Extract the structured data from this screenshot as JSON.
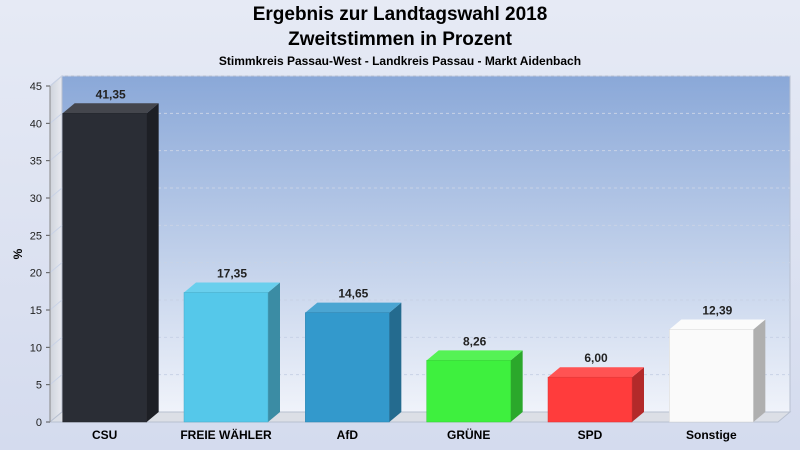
{
  "title_line1": "Ergebnis zur Landtagswahl 2018",
  "title_line2": "Zweitstimmen in Prozent",
  "subtitle": "Stimmkreis Passau-West - Landkreis Passau - Markt Aidenbach",
  "chart_data": {
    "type": "bar",
    "title": "Ergebnis zur Landtagswahl 2018 Zweitstimmen in Prozent",
    "subtitle": "Stimmkreis Passau-West - Landkreis Passau - Markt Aidenbach",
    "xlabel": "",
    "ylabel": "%",
    "ylim": [
      0,
      45
    ],
    "yticks": [
      0,
      5,
      10,
      15,
      20,
      25,
      30,
      35,
      40,
      45
    ],
    "grid": true,
    "categories": [
      "CSU",
      "FREIE WÄHLER",
      "AfD",
      "GRÜNE",
      "SPD",
      "Sonstige"
    ],
    "values": [
      41.35,
      17.35,
      14.65,
      8.26,
      6.0,
      12.39
    ],
    "value_labels": [
      "41,35",
      "17,35",
      "14,65",
      "8,26",
      "6,00",
      "12,39"
    ],
    "colors": [
      "#2a2d35",
      "#55c8ea",
      "#3399cc",
      "#3ef03e",
      "#ff3c3c",
      "#fafafa"
    ]
  }
}
